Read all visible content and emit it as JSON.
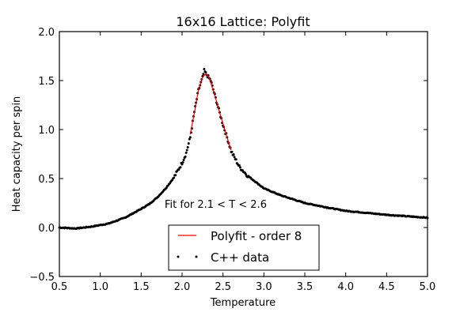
{
  "chart_data": {
    "type": "scatter",
    "title": "16x16 Lattice: Polyfit",
    "xlabel": "Temperature",
    "ylabel": "Heat capacity per spin",
    "xlim": [
      0.5,
      5.0
    ],
    "ylim": [
      -0.5,
      2.0
    ],
    "xticks": [
      "0.5",
      "1.0",
      "1.5",
      "2.0",
      "2.5",
      "3.0",
      "3.5",
      "4.0",
      "4.5",
      "5.0"
    ],
    "yticks": [
      "−0.5",
      "0.0",
      "0.5",
      "1.0",
      "1.5",
      "2.0"
    ],
    "grid": false,
    "legend_position": "lower center",
    "annotation": "Fit for 2.1 < T < 2.6",
    "series": [
      {
        "name": "Polyfit - order 8",
        "style": "line",
        "color": "#ff0000",
        "x": [
          2.1,
          2.15,
          2.2,
          2.25,
          2.29,
          2.33,
          2.4,
          2.45,
          2.5,
          2.55,
          2.6
        ],
        "y": [
          0.95,
          1.17,
          1.4,
          1.53,
          1.57,
          1.53,
          1.35,
          1.2,
          1.06,
          0.92,
          0.79
        ]
      },
      {
        "name": "C++ data",
        "style": "points",
        "color": "#000000",
        "x": [
          0.5,
          0.7,
          0.9,
          1.1,
          1.3,
          1.5,
          1.6,
          1.7,
          1.8,
          1.9,
          2.0,
          2.05,
          2.1,
          2.15,
          2.2,
          2.25,
          2.27,
          2.3,
          2.35,
          2.4,
          2.45,
          2.5,
          2.55,
          2.6,
          2.7,
          2.8,
          3.0,
          3.2,
          3.5,
          3.8,
          4.0,
          4.5,
          5.0
        ],
        "y": [
          0.0,
          -0.01,
          0.01,
          0.04,
          0.1,
          0.19,
          0.24,
          0.31,
          0.4,
          0.51,
          0.66,
          0.76,
          0.92,
          1.18,
          1.4,
          1.53,
          1.6,
          1.56,
          1.5,
          1.35,
          1.2,
          1.05,
          0.92,
          0.78,
          0.62,
          0.53,
          0.4,
          0.33,
          0.25,
          0.2,
          0.17,
          0.13,
          0.1
        ]
      }
    ]
  },
  "legend": {
    "items": [
      {
        "label": "Polyfit - order 8",
        "color": "#ff0000"
      },
      {
        "label": "C++ data",
        "color": "#000000"
      }
    ]
  }
}
